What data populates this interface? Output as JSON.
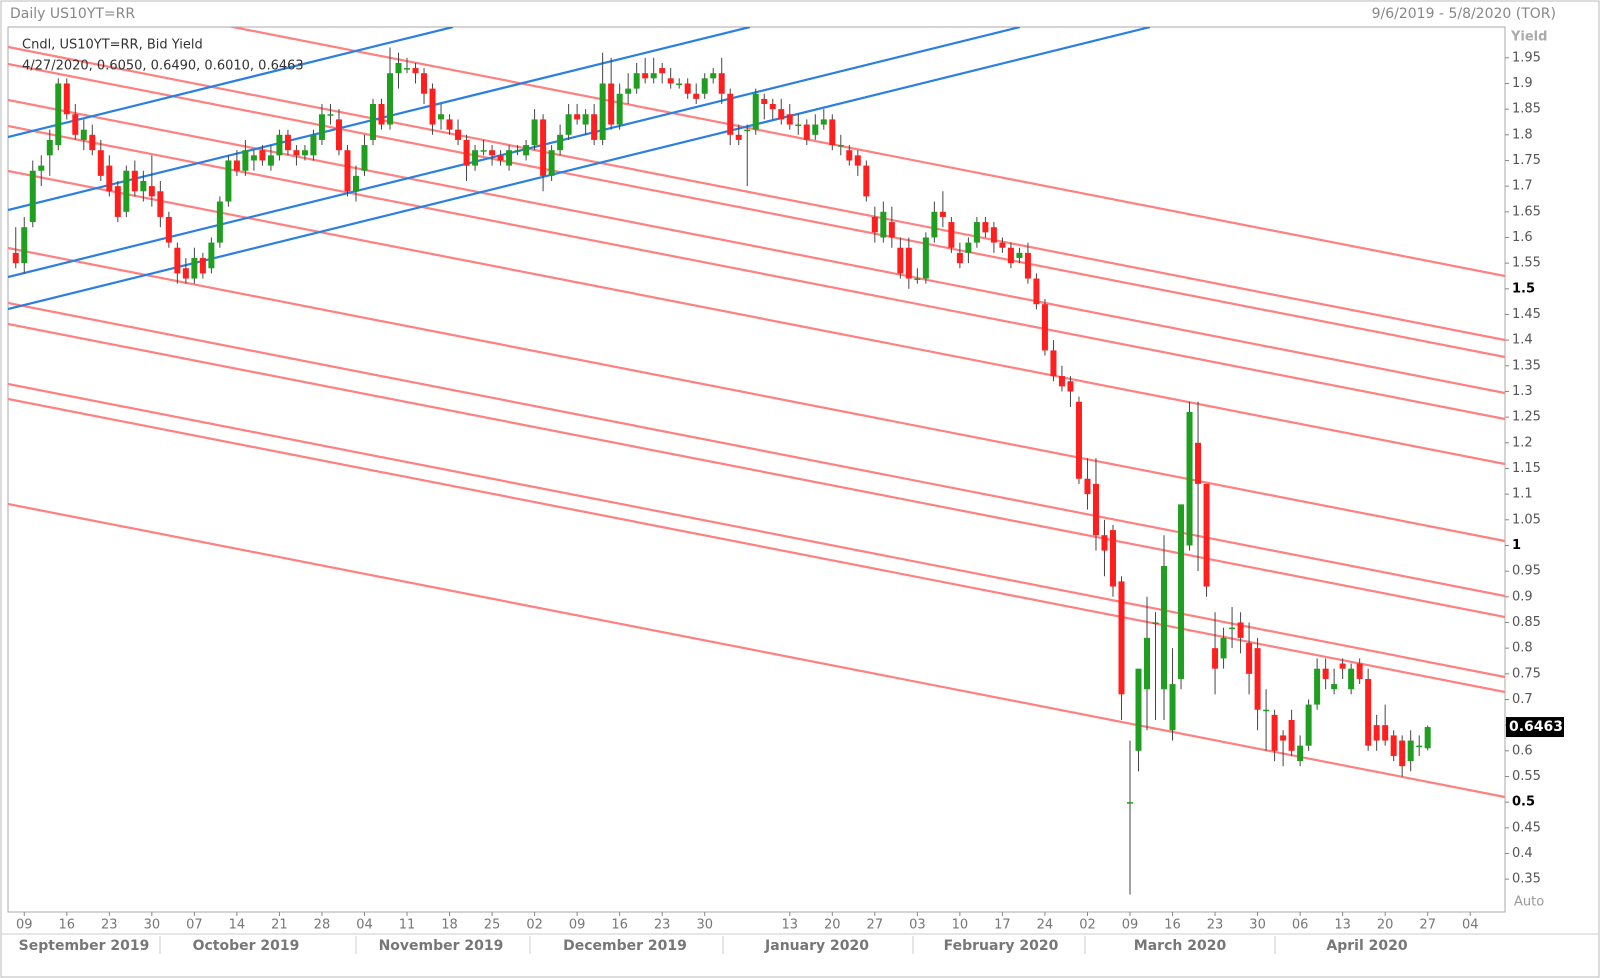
{
  "chart_data": {
    "type": "candlestick",
    "title": "Daily US10YT=RR",
    "date_range": "9/6/2019 - 5/8/2020 (TOR)",
    "legend": [
      "Cndl, US10YT=RR, Bid Yield",
      "4/27/2020, 0.6050, 0.6490, 0.6010, 0.6463"
    ],
    "y_label": "Yield",
    "scale_mode": "Auto",
    "colors": {
      "up": "#1f9e1f",
      "down": "#ff1f1f",
      "wick": "#444444"
    },
    "ylim": [
      0.286,
      2.01
    ],
    "yticks": [
      0.35,
      0.4,
      0.45,
      0.5,
      0.55,
      0.6,
      0.65,
      0.7,
      0.75,
      0.8,
      0.85,
      0.9,
      0.95,
      1,
      1.05,
      1.1,
      1.15,
      1.2,
      1.25,
      1.3,
      1.35,
      1.4,
      1.45,
      1.5,
      1.55,
      1.6,
      1.65,
      1.7,
      1.75,
      1.8,
      1.85,
      1.9,
      1.95
    ],
    "x_groups": [
      "September 2019",
      "October 2019",
      "November 2019",
      "December 2019",
      "January 2020",
      "February 2020",
      "March 2020",
      "April 2020"
    ],
    "categories": [
      null,
      "09",
      null,
      null,
      null,
      null,
      "16",
      null,
      null,
      null,
      null,
      "23",
      null,
      null,
      null,
      null,
      "30",
      null,
      null,
      null,
      null,
      "07",
      null,
      null,
      null,
      null,
      "14",
      null,
      null,
      null,
      null,
      "21",
      null,
      null,
      null,
      null,
      "28",
      null,
      null,
      null,
      null,
      "04",
      null,
      null,
      null,
      null,
      "11",
      null,
      null,
      null,
      null,
      "18",
      null,
      null,
      null,
      null,
      "25",
      null,
      null,
      null,
      null,
      "02",
      null,
      null,
      null,
      null,
      "09",
      null,
      null,
      null,
      null,
      "16",
      null,
      null,
      null,
      null,
      "23",
      null,
      null,
      null,
      null,
      "30",
      null,
      null,
      null,
      null,
      null,
      null,
      null,
      null,
      null,
      "13",
      null,
      null,
      null,
      null,
      "20",
      null,
      null,
      null,
      null,
      "27",
      null,
      null,
      null,
      null,
      "03",
      null,
      null,
      null,
      null,
      "10",
      null,
      null,
      null,
      null,
      "17",
      null,
      null,
      null,
      null,
      "24",
      null,
      null,
      null,
      null,
      "02",
      null,
      null,
      null,
      null,
      "09",
      null,
      null,
      null,
      null,
      "16",
      null,
      null,
      null,
      null,
      "23",
      null,
      null,
      null,
      null,
      "30",
      null,
      null,
      null,
      null,
      "06",
      null,
      null,
      null,
      null,
      "13",
      null,
      null,
      null,
      null,
      "20",
      null,
      null,
      null,
      null,
      "27",
      null,
      null,
      null,
      null,
      "04",
      null,
      null,
      null,
      null
    ],
    "ohlc": [
      [
        1.57,
        1.62,
        1.54,
        1.55
      ],
      [
        1.55,
        1.64,
        1.53,
        1.62
      ],
      [
        1.63,
        1.75,
        1.62,
        1.73
      ],
      [
        1.73,
        1.76,
        1.7,
        1.74
      ],
      [
        1.76,
        1.81,
        1.72,
        1.79
      ],
      [
        1.78,
        1.91,
        1.77,
        1.9
      ],
      [
        1.9,
        1.91,
        1.83,
        1.84
      ],
      [
        1.84,
        1.86,
        1.79,
        1.8
      ],
      [
        1.79,
        1.83,
        1.77,
        1.81
      ],
      [
        1.8,
        1.82,
        1.76,
        1.77
      ],
      [
        1.77,
        1.79,
        1.71,
        1.72
      ],
      [
        1.74,
        1.76,
        1.68,
        1.69
      ],
      [
        1.7,
        1.71,
        1.63,
        1.64
      ],
      [
        1.65,
        1.74,
        1.64,
        1.73
      ],
      [
        1.73,
        1.75,
        1.68,
        1.69
      ],
      [
        1.69,
        1.73,
        1.67,
        1.71
      ],
      [
        1.7,
        1.76,
        1.66,
        1.68
      ],
      [
        1.69,
        1.71,
        1.62,
        1.64
      ],
      [
        1.64,
        1.65,
        1.58,
        1.59
      ],
      [
        1.58,
        1.59,
        1.51,
        1.53
      ],
      [
        1.54,
        1.56,
        1.51,
        1.52
      ],
      [
        1.52,
        1.58,
        1.51,
        1.56
      ],
      [
        1.56,
        1.57,
        1.52,
        1.53
      ],
      [
        1.54,
        1.6,
        1.53,
        1.59
      ],
      [
        1.59,
        1.68,
        1.58,
        1.67
      ],
      [
        1.67,
        1.76,
        1.66,
        1.75
      ],
      [
        1.75,
        1.77,
        1.72,
        1.73
      ],
      [
        1.73,
        1.79,
        1.72,
        1.77
      ],
      [
        1.75,
        1.77,
        1.73,
        1.76
      ],
      [
        1.77,
        1.78,
        1.74,
        1.75
      ],
      [
        1.74,
        1.78,
        1.73,
        1.76
      ],
      [
        1.76,
        1.81,
        1.75,
        1.8
      ],
      [
        1.8,
        1.81,
        1.76,
        1.77
      ],
      [
        1.77,
        1.78,
        1.74,
        1.76
      ],
      [
        1.76,
        1.78,
        1.75,
        1.77
      ],
      [
        1.76,
        1.81,
        1.75,
        1.8
      ],
      [
        1.79,
        1.86,
        1.78,
        1.84
      ],
      [
        1.84,
        1.86,
        1.82,
        1.84
      ],
      [
        1.83,
        1.85,
        1.76,
        1.77
      ],
      [
        1.77,
        1.78,
        1.68,
        1.69
      ],
      [
        1.69,
        1.74,
        1.67,
        1.72
      ],
      [
        1.73,
        1.8,
        1.72,
        1.78
      ],
      [
        1.79,
        1.87,
        1.78,
        1.86
      ],
      [
        1.86,
        1.87,
        1.81,
        1.82
      ],
      [
        1.82,
        1.97,
        1.81,
        1.92
      ],
      [
        1.92,
        1.96,
        1.89,
        1.94
      ],
      [
        1.93,
        1.95,
        1.92,
        1.93
      ],
      [
        1.93,
        1.94,
        1.9,
        1.92
      ],
      [
        1.92,
        1.93,
        1.86,
        1.88
      ],
      [
        1.89,
        1.9,
        1.8,
        1.82
      ],
      [
        1.83,
        1.86,
        1.81,
        1.84
      ],
      [
        1.83,
        1.84,
        1.8,
        1.81
      ],
      [
        1.81,
        1.83,
        1.78,
        1.79
      ],
      [
        1.79,
        1.8,
        1.71,
        1.74
      ],
      [
        1.74,
        1.78,
        1.73,
        1.77
      ],
      [
        1.77,
        1.79,
        1.76,
        1.77
      ],
      [
        1.77,
        1.78,
        1.74,
        1.76
      ],
      [
        1.76,
        1.77,
        1.74,
        1.75
      ],
      [
        1.74,
        1.78,
        1.73,
        1.77
      ],
      [
        1.77,
        1.78,
        1.76,
        1.77
      ],
      [
        1.76,
        1.79,
        1.75,
        1.78
      ],
      [
        1.78,
        1.85,
        1.77,
        1.83
      ],
      [
        1.83,
        1.84,
        1.69,
        1.72
      ],
      [
        1.72,
        1.78,
        1.71,
        1.77
      ],
      [
        1.77,
        1.82,
        1.76,
        1.8
      ],
      [
        1.8,
        1.86,
        1.79,
        1.84
      ],
      [
        1.84,
        1.86,
        1.82,
        1.83
      ],
      [
        1.82,
        1.85,
        1.8,
        1.84
      ],
      [
        1.84,
        1.86,
        1.78,
        1.79
      ],
      [
        1.79,
        1.96,
        1.78,
        1.9
      ],
      [
        1.9,
        1.95,
        1.81,
        1.82
      ],
      [
        1.82,
        1.9,
        1.81,
        1.88
      ],
      [
        1.88,
        1.92,
        1.86,
        1.89
      ],
      [
        1.89,
        1.94,
        1.88,
        1.92
      ],
      [
        1.92,
        1.95,
        1.9,
        1.91
      ],
      [
        1.91,
        1.95,
        1.9,
        1.92
      ],
      [
        1.93,
        1.94,
        1.9,
        1.92
      ],
      [
        1.91,
        1.93,
        1.89,
        1.9
      ],
      [
        1.9,
        1.91,
        1.89,
        1.9
      ],
      [
        1.9,
        1.91,
        1.87,
        1.88
      ],
      [
        1.88,
        1.9,
        1.86,
        1.87
      ],
      [
        1.88,
        1.92,
        1.87,
        1.91
      ],
      [
        1.91,
        1.93,
        1.9,
        1.92
      ],
      [
        1.92,
        1.95,
        1.86,
        1.88
      ],
      [
        1.88,
        1.89,
        1.78,
        1.8
      ],
      [
        1.8,
        1.82,
        1.78,
        1.79
      ],
      [
        1.81,
        1.82,
        1.7,
        1.81
      ],
      [
        1.81,
        1.89,
        1.8,
        1.88
      ],
      [
        1.87,
        1.88,
        1.83,
        1.86
      ],
      [
        1.86,
        1.87,
        1.83,
        1.85
      ],
      [
        1.85,
        1.87,
        1.82,
        1.83
      ],
      [
        1.84,
        1.86,
        1.81,
        1.82
      ],
      [
        1.82,
        1.84,
        1.8,
        1.82
      ],
      [
        1.82,
        1.83,
        1.78,
        1.79
      ],
      [
        1.8,
        1.84,
        1.79,
        1.82
      ],
      [
        1.82,
        1.85,
        1.81,
        1.83
      ],
      [
        1.83,
        1.84,
        1.77,
        1.78
      ],
      [
        1.78,
        1.8,
        1.76,
        1.78
      ],
      [
        1.77,
        1.78,
        1.74,
        1.75
      ],
      [
        1.76,
        1.77,
        1.72,
        1.74
      ],
      [
        1.74,
        1.75,
        1.67,
        1.68
      ],
      [
        1.64,
        1.66,
        1.59,
        1.61
      ],
      [
        1.6,
        1.67,
        1.59,
        1.65
      ],
      [
        1.63,
        1.66,
        1.58,
        1.6
      ],
      [
        1.58,
        1.6,
        1.52,
        1.53
      ],
      [
        1.58,
        1.6,
        1.5,
        1.52
      ],
      [
        1.52,
        1.54,
        1.51,
        1.52
      ],
      [
        1.52,
        1.61,
        1.51,
        1.6
      ],
      [
        1.6,
        1.67,
        1.59,
        1.65
      ],
      [
        1.65,
        1.69,
        1.62,
        1.64
      ],
      [
        1.63,
        1.64,
        1.57,
        1.58
      ],
      [
        1.57,
        1.59,
        1.54,
        1.55
      ],
      [
        1.57,
        1.6,
        1.55,
        1.59
      ],
      [
        1.59,
        1.64,
        1.58,
        1.63
      ],
      [
        1.63,
        1.64,
        1.6,
        1.61
      ],
      [
        1.62,
        1.63,
        1.57,
        1.59
      ],
      [
        1.59,
        1.6,
        1.57,
        1.58
      ],
      [
        1.58,
        1.59,
        1.54,
        1.55
      ],
      [
        1.56,
        1.58,
        1.55,
        1.57
      ],
      [
        1.57,
        1.59,
        1.51,
        1.52
      ],
      [
        1.52,
        1.53,
        1.46,
        1.47
      ],
      [
        1.47,
        1.48,
        1.37,
        1.38
      ],
      [
        1.38,
        1.4,
        1.32,
        1.33
      ],
      [
        1.33,
        1.35,
        1.3,
        1.31
      ],
      [
        1.32,
        1.33,
        1.27,
        1.3
      ],
      [
        1.28,
        1.29,
        1.12,
        1.13
      ],
      [
        1.13,
        1.17,
        1.07,
        1.1
      ],
      [
        1.12,
        1.17,
        0.99,
        1.02
      ],
      [
        1.02,
        1.05,
        0.94,
        0.99
      ],
      [
        1.03,
        1.04,
        0.9,
        0.92
      ],
      [
        0.93,
        0.94,
        0.66,
        0.71
      ],
      [
        0.5,
        0.62,
        0.32,
        0.5
      ],
      [
        0.6,
        0.76,
        0.56,
        0.76
      ],
      [
        0.72,
        0.9,
        0.64,
        0.82
      ],
      [
        0.85,
        0.87,
        0.66,
        0.85
      ],
      [
        0.72,
        1.02,
        0.66,
        0.96
      ],
      [
        0.64,
        0.8,
        0.62,
        0.73
      ],
      [
        0.74,
        1.08,
        0.72,
        1.08
      ],
      [
        1.0,
        1.28,
        0.99,
        1.26
      ],
      [
        1.2,
        1.28,
        0.95,
        1.12
      ],
      [
        1.12,
        1.12,
        0.9,
        0.92
      ],
      [
        0.8,
        0.87,
        0.71,
        0.76
      ],
      [
        0.78,
        0.84,
        0.76,
        0.82
      ],
      [
        0.84,
        0.88,
        0.8,
        0.84
      ],
      [
        0.85,
        0.87,
        0.79,
        0.82
      ],
      [
        0.81,
        0.85,
        0.71,
        0.75
      ],
      [
        0.8,
        0.82,
        0.64,
        0.68
      ],
      [
        0.68,
        0.72,
        0.6,
        0.68
      ],
      [
        0.67,
        0.68,
        0.58,
        0.6
      ],
      [
        0.63,
        0.64,
        0.57,
        0.62
      ],
      [
        0.66,
        0.68,
        0.59,
        0.6
      ],
      [
        0.58,
        0.63,
        0.57,
        0.61
      ],
      [
        0.61,
        0.7,
        0.6,
        0.69
      ],
      [
        0.69,
        0.78,
        0.68,
        0.76
      ],
      [
        0.76,
        0.78,
        0.72,
        0.74
      ],
      [
        0.72,
        0.76,
        0.71,
        0.73
      ],
      [
        0.77,
        0.78,
        0.74,
        0.76
      ],
      [
        0.72,
        0.77,
        0.71,
        0.76
      ],
      [
        0.77,
        0.78,
        0.73,
        0.74
      ],
      [
        0.74,
        0.76,
        0.6,
        0.61
      ],
      [
        0.65,
        0.67,
        0.6,
        0.62
      ],
      [
        0.65,
        0.69,
        0.61,
        0.62
      ],
      [
        0.63,
        0.64,
        0.58,
        0.59
      ],
      [
        0.62,
        0.63,
        0.55,
        0.57
      ],
      [
        0.58,
        0.64,
        0.56,
        0.62
      ],
      [
        0.61,
        0.63,
        0.59,
        0.61
      ],
      [
        0.605,
        0.649,
        0.601,
        0.6463
      ],
      null,
      null,
      null,
      null,
      null,
      null,
      null,
      null,
      null
    ]
  }
}
